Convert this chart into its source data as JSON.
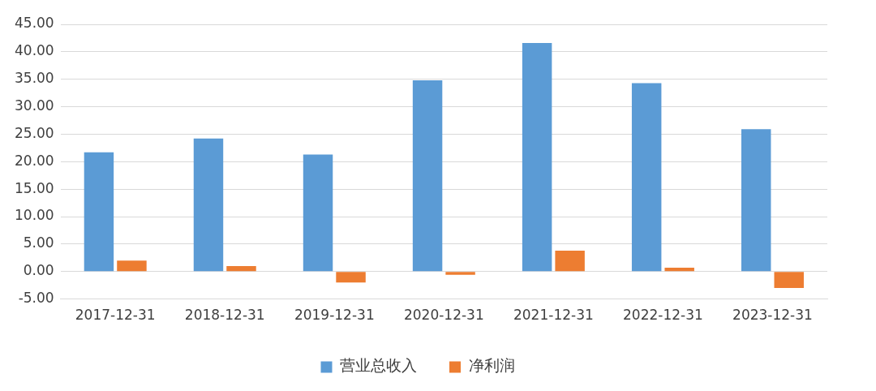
{
  "chart_data": {
    "type": "bar",
    "categories": [
      "2017-12-31",
      "2018-12-31",
      "2019-12-31",
      "2020-12-31",
      "2021-12-31",
      "2022-12-31",
      "2023-12-31"
    ],
    "series": [
      {
        "name": "营业总收入",
        "color": "#5b9bd5",
        "values": [
          21.7,
          24.2,
          21.3,
          34.8,
          41.6,
          34.3,
          25.9
        ]
      },
      {
        "name": "净利润",
        "color": "#ed7d31",
        "values": [
          2.0,
          1.0,
          -2.0,
          -0.6,
          3.8,
          0.7,
          -3.0
        ]
      }
    ],
    "ylim": [
      -5,
      45
    ],
    "yticks": [
      {
        "value": -5,
        "label": "-5.00"
      },
      {
        "value": 0,
        "label": "0.00"
      },
      {
        "value": 5,
        "label": "5.00"
      },
      {
        "value": 10,
        "label": "10.00"
      },
      {
        "value": 15,
        "label": "15.00"
      },
      {
        "value": 20,
        "label": "20.00"
      },
      {
        "value": 25,
        "label": "25.00"
      },
      {
        "value": 30,
        "label": "30.00"
      },
      {
        "value": 35,
        "label": "35.00"
      },
      {
        "value": 40,
        "label": "40.00"
      },
      {
        "value": 45,
        "label": "45.00"
      }
    ],
    "grid": "y",
    "legend": "bottom"
  }
}
